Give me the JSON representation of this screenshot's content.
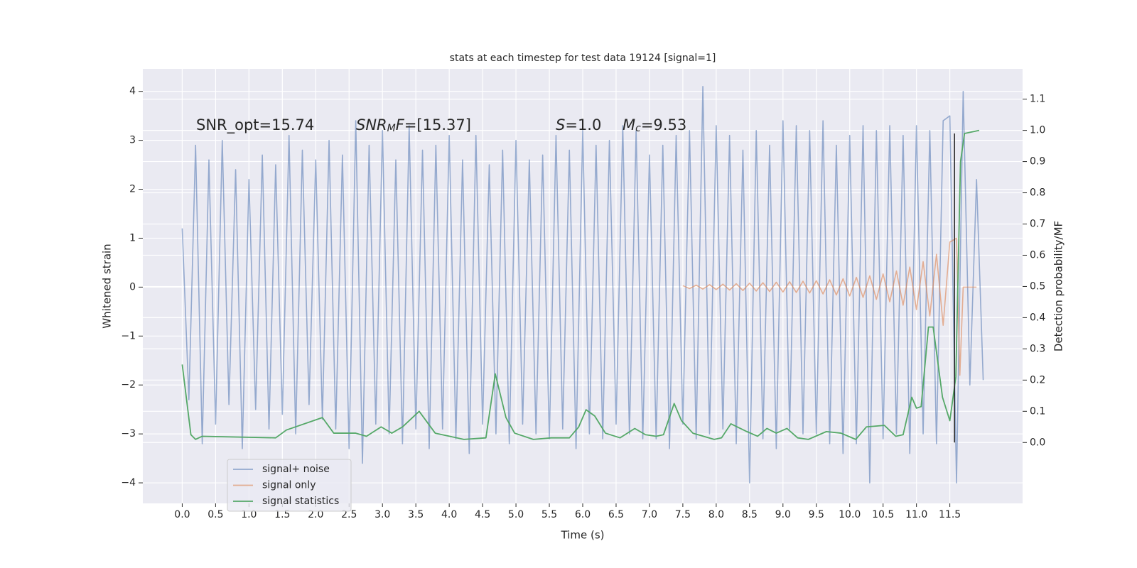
{
  "chart_data": {
    "type": "line",
    "title": "stats at each timestep for test data 19124 [signal=1]",
    "xlabel": "Time (s)",
    "ylabel": "Whitened strain",
    "y2label": "Detection probability/MF",
    "xlim": [
      -0.59,
      12.59
    ],
    "ylim": [
      -4.42,
      4.46
    ],
    "y2lim": [
      -0.195,
      1.197
    ],
    "xticks": [
      {
        "value": 0,
        "label": "0.0"
      },
      0.5,
      {
        "value": 1,
        "label": "1.0"
      },
      1.5,
      {
        "value": 2,
        "label": "2.0"
      },
      2.5,
      {
        "value": 3,
        "label": "3.0"
      },
      3.5,
      {
        "value": 4,
        "label": "4.0"
      },
      4.5,
      {
        "value": 5,
        "label": "5.0"
      },
      5.5,
      {
        "value": 6,
        "label": "6.0"
      },
      6.5,
      {
        "value": 7,
        "label": "7.0"
      },
      7.5,
      {
        "value": 8,
        "label": "8.0"
      },
      8.5,
      {
        "value": 9,
        "label": "9.0"
      },
      9.5,
      {
        "value": 10,
        "label": "10.0"
      },
      10.5,
      {
        "value": 11,
        "label": "11.0"
      },
      11.5
    ],
    "yticks": [
      4,
      3,
      2,
      1,
      0,
      {
        "value": -1,
        "label": "−1"
      },
      {
        "value": -2,
        "label": "−2"
      },
      {
        "value": -3,
        "label": "−3"
      },
      {
        "value": -4,
        "label": "−4"
      }
    ],
    "y2ticks": [
      {
        "value": 0,
        "label": "0.0"
      },
      0.1,
      0.2,
      0.3,
      0.4,
      0.5,
      0.6,
      0.7,
      0.8,
      0.9,
      {
        "value": 1,
        "label": "1.0"
      },
      1.1
    ],
    "grid": true,
    "legend": "lower left",
    "annotations": [
      [
        {
          "text": "SNR_opt=15.74"
        }
      ],
      [
        {
          "text": "SNR",
          "italic": true
        },
        {
          "text": "M",
          "italic": true,
          "sub": true
        },
        {
          "text": "F",
          "italic": true
        },
        {
          "text": "=[15.37]"
        }
      ],
      [
        {
          "text": "S",
          "italic": true
        },
        {
          "text": "=1.0"
        }
      ],
      [
        {
          "text": "M",
          "italic": true
        },
        {
          "text": "c",
          "italic": true,
          "sub": true
        },
        {
          "text": "=9.53"
        }
      ]
    ],
    "vlines": [
      {
        "x": 11.57,
        "y2range": [
          0.0,
          0.99
        ],
        "color": "#222222"
      }
    ],
    "series": [
      {
        "name": "signal+ noise",
        "color": "#4c72b0",
        "alpha": 0.55,
        "x": [
          0.0,
          0.1,
          0.2,
          0.3,
          0.4,
          0.5,
          0.6,
          0.7,
          0.8,
          0.9,
          1.0,
          1.1,
          1.2,
          1.3,
          1.4,
          1.5,
          1.6,
          1.7,
          1.8,
          1.9,
          2.0,
          2.1,
          2.2,
          2.3,
          2.4,
          2.5,
          2.6,
          2.7,
          2.8,
          2.9,
          3.0,
          3.1,
          3.2,
          3.3,
          3.4,
          3.5,
          3.6,
          3.7,
          3.8,
          3.9,
          4.0,
          4.1,
          4.2,
          4.3,
          4.4,
          4.5,
          4.6,
          4.7,
          4.8,
          4.9,
          5.0,
          5.1,
          5.2,
          5.3,
          5.4,
          5.5,
          5.6,
          5.7,
          5.8,
          5.9,
          6.0,
          6.1,
          6.2,
          6.3,
          6.4,
          6.5,
          6.6,
          6.7,
          6.8,
          6.9,
          7.0,
          7.1,
          7.2,
          7.3,
          7.4,
          7.5,
          7.6,
          7.7,
          7.8,
          7.9,
          8.0,
          8.1,
          8.2,
          8.3,
          8.4,
          8.5,
          8.6,
          8.7,
          8.8,
          8.9,
          9.0,
          9.1,
          9.2,
          9.3,
          9.4,
          9.5,
          9.6,
          9.7,
          9.8,
          9.9,
          10.0,
          10.1,
          10.2,
          10.3,
          10.4,
          10.5,
          10.6,
          10.7,
          10.8,
          10.9,
          11.0,
          11.1,
          11.2,
          11.3,
          11.4,
          11.5,
          11.6,
          11.7,
          11.8,
          11.9,
          12.0
        ],
        "values": [
          1.2,
          -2.3,
          2.9,
          -3.2,
          2.6,
          -2.8,
          3.0,
          -2.4,
          2.4,
          -3.3,
          2.2,
          -2.5,
          2.7,
          -2.9,
          2.5,
          -2.6,
          3.1,
          -3.0,
          2.8,
          -2.4,
          2.6,
          -2.7,
          3.0,
          -2.9,
          2.7,
          -3.3,
          3.4,
          -3.6,
          2.9,
          -2.8,
          3.2,
          -3.0,
          2.6,
          -3.2,
          3.3,
          -2.9,
          2.8,
          -3.3,
          2.9,
          -2.9,
          3.1,
          -3.1,
          2.6,
          -3.4,
          3.1,
          -2.8,
          2.5,
          -3.0,
          2.8,
          -3.2,
          3.0,
          -2.8,
          2.6,
          -3.0,
          2.7,
          -3.1,
          3.1,
          -2.9,
          2.8,
          -3.3,
          3.2,
          -3.0,
          2.9,
          -3.1,
          3.0,
          -2.8,
          3.3,
          -3.0,
          3.2,
          -3.1,
          2.7,
          -3.1,
          2.9,
          -3.3,
          3.1,
          -2.8,
          3.2,
          -3.1,
          4.1,
          -3.0,
          3.3,
          -2.9,
          3.1,
          -3.2,
          2.8,
          -4.0,
          3.2,
          -3.1,
          2.9,
          -3.3,
          3.4,
          -2.9,
          3.3,
          -3.0,
          3.2,
          -3.0,
          3.4,
          -3.2,
          2.9,
          -3.4,
          3.1,
          -3.2,
          3.3,
          -4.0,
          3.2,
          -3.1,
          3.3,
          -3.0,
          3.1,
          -3.4,
          3.3,
          -3.0,
          3.2,
          -3.2,
          3.4,
          3.5,
          -4.0,
          4.0,
          -2.0,
          2.2,
          -1.9
        ]
      },
      {
        "name": "signal only",
        "color": "#dd8452",
        "alpha": 0.6,
        "x": [
          7.5,
          7.6,
          7.7,
          7.8,
          7.9,
          8.0,
          8.1,
          8.2,
          8.3,
          8.4,
          8.5,
          8.6,
          8.7,
          8.8,
          8.9,
          9.0,
          9.1,
          9.2,
          9.3,
          9.4,
          9.5,
          9.6,
          9.7,
          9.8,
          9.9,
          10.0,
          10.1,
          10.2,
          10.3,
          10.4,
          10.5,
          10.6,
          10.7,
          10.8,
          10.9,
          11.0,
          11.1,
          11.2,
          11.3,
          11.4,
          11.5,
          11.6,
          11.65,
          11.7,
          11.9
        ],
        "values": [
          0.03,
          -0.03,
          0.04,
          -0.04,
          0.05,
          -0.05,
          0.06,
          -0.06,
          0.07,
          -0.07,
          0.08,
          -0.08,
          0.09,
          -0.09,
          0.1,
          -0.1,
          0.11,
          -0.11,
          0.12,
          -0.12,
          0.13,
          -0.14,
          0.15,
          -0.16,
          0.17,
          -0.18,
          0.2,
          -0.21,
          0.23,
          -0.25,
          0.27,
          -0.3,
          0.33,
          -0.37,
          0.41,
          -0.46,
          0.52,
          -0.59,
          0.67,
          -0.78,
          0.92,
          1.0,
          -1.8,
          0.0,
          0.0
        ]
      },
      {
        "name": "signal statistics",
        "color": "#55a868",
        "alpha": 1,
        "axis": "y2",
        "x": [
          0.0,
          0.13,
          0.2,
          0.3,
          1.4,
          1.56,
          2.1,
          2.27,
          2.6,
          2.76,
          2.98,
          3.14,
          3.3,
          3.55,
          3.79,
          4.22,
          4.55,
          4.69,
          4.85,
          4.98,
          5.26,
          5.53,
          5.8,
          5.94,
          6.05,
          6.18,
          6.34,
          6.56,
          6.78,
          6.94,
          7.1,
          7.21,
          7.37,
          7.48,
          7.65,
          7.97,
          8.08,
          8.22,
          8.46,
          8.62,
          8.76,
          8.9,
          9.06,
          9.22,
          9.38,
          9.65,
          9.87,
          10.09,
          10.25,
          10.52,
          10.69,
          10.8,
          10.93,
          11.0,
          11.07,
          11.18,
          11.25,
          11.39,
          11.5,
          11.59,
          11.66,
          11.72,
          11.94
        ],
        "values": [
          0.25,
          0.025,
          0.01,
          0.02,
          0.015,
          0.04,
          0.08,
          0.03,
          0.03,
          0.02,
          0.05,
          0.03,
          0.05,
          0.1,
          0.03,
          0.01,
          0.015,
          0.22,
          0.08,
          0.03,
          0.01,
          0.015,
          0.015,
          0.05,
          0.105,
          0.085,
          0.03,
          0.015,
          0.045,
          0.025,
          0.02,
          0.025,
          0.125,
          0.07,
          0.03,
          0.01,
          0.015,
          0.06,
          0.035,
          0.02,
          0.045,
          0.03,
          0.045,
          0.015,
          0.01,
          0.035,
          0.03,
          0.01,
          0.05,
          0.055,
          0.02,
          0.025,
          0.145,
          0.11,
          0.115,
          0.37,
          0.37,
          0.145,
          0.07,
          0.21,
          0.9,
          0.99,
          1.0
        ]
      }
    ]
  }
}
